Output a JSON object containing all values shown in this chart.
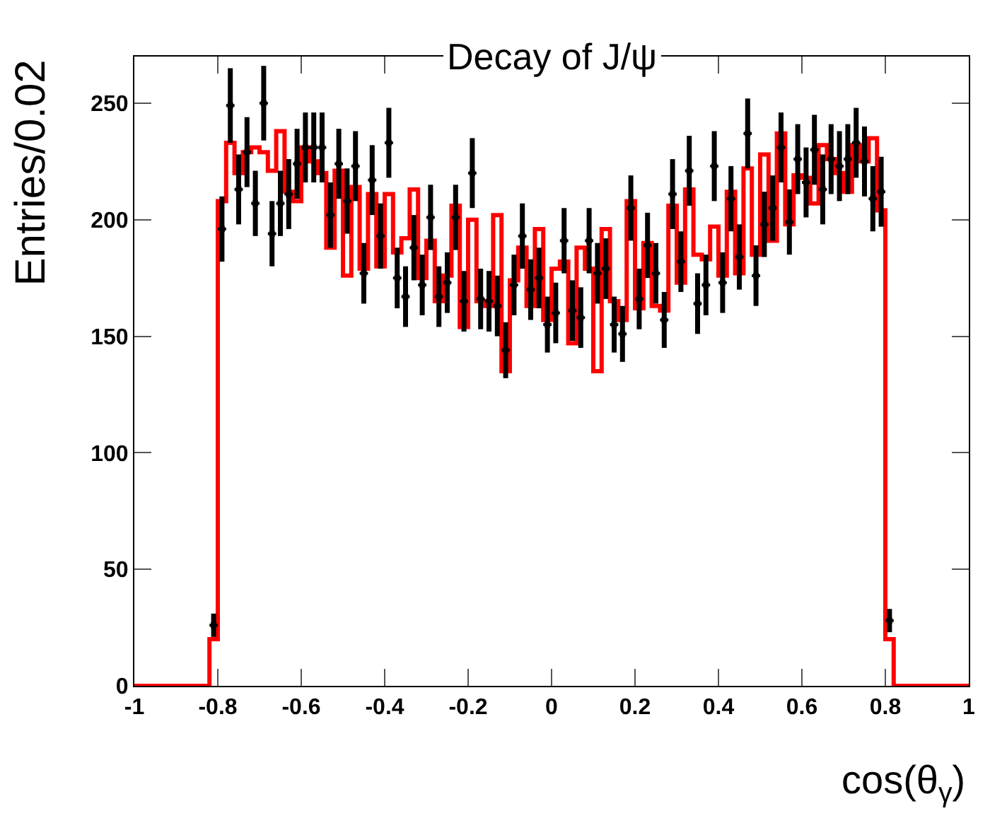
{
  "chart_data": {
    "type": "histogram",
    "title": "Decay of J/ψ",
    "xlabel": "cos(θ$_{γ}$)",
    "ylabel": "Entries/0.02",
    "xlim": [
      -1,
      1
    ],
    "xticks": [
      -1,
      -0.8,
      -0.6,
      -0.4,
      -0.2,
      0,
      0.2,
      0.4,
      0.6,
      0.8,
      1
    ],
    "ylim": [
      0,
      270
    ],
    "yticks": [
      0,
      50,
      100,
      150,
      200,
      250
    ],
    "bins": [
      -1,
      -0.82,
      -0.8,
      -0.78,
      -0.76,
      -0.74,
      -0.72,
      -0.7,
      -0.68,
      -0.66,
      -0.64,
      -0.62,
      -0.6,
      -0.58,
      -0.56,
      -0.54,
      -0.52,
      -0.5,
      -0.48,
      -0.46,
      -0.44,
      -0.42,
      -0.4,
      -0.38,
      -0.36,
      -0.34,
      -0.32,
      -0.3,
      -0.28,
      -0.26,
      -0.24,
      -0.22,
      -0.2,
      -0.18,
      -0.16,
      -0.14,
      -0.12,
      -0.1,
      -0.08,
      -0.06,
      -0.04,
      -0.02,
      0,
      0.02,
      0.04,
      0.06,
      0.08,
      0.1,
      0.12,
      0.14,
      0.16,
      0.18,
      0.2,
      0.22,
      0.24,
      0.26,
      0.28,
      0.3,
      0.32,
      0.34,
      0.36,
      0.38,
      0.4,
      0.42,
      0.44,
      0.46,
      0.48,
      0.5,
      0.52,
      0.54,
      0.56,
      0.58,
      0.6,
      0.62,
      0.64,
      0.66,
      0.68,
      0.7,
      0.72,
      0.74,
      0.76,
      0.78,
      0.8,
      0.82,
      1
    ],
    "series": [
      {
        "color": "#ff0000",
        "values": [
          0,
          20,
          208,
          233,
          220,
          229,
          231,
          229,
          221,
          238,
          212,
          208,
          231,
          225,
          220,
          188,
          221,
          176,
          214,
          179,
          211,
          180,
          211,
          186,
          192,
          213,
          175,
          191,
          165,
          176,
          206,
          154,
          200,
          165,
          163,
          202,
          135,
          174,
          188,
          163,
          196,
          157,
          179,
          182,
          147,
          188,
          179,
          135,
          196,
          165,
          157,
          208,
          162,
          190,
          163,
          161,
          206,
          173,
          213,
          185,
          183,
          197,
          176,
          212,
          177,
          222,
          185,
          228,
          191,
          237,
          198,
          219,
          218,
          207,
          232,
          226,
          220,
          212,
          232,
          225,
          235,
          204,
          20,
          0
        ]
      },
      {
        "type": "scatter",
        "color": "#000000",
        "marker": "square",
        "x": [
          -0.81,
          -0.79,
          -0.77,
          -0.75,
          -0.73,
          -0.71,
          -0.69,
          -0.67,
          -0.65,
          -0.63,
          -0.61,
          -0.59,
          -0.57,
          -0.55,
          -0.53,
          -0.51,
          -0.49,
          -0.47,
          -0.45,
          -0.43,
          -0.41,
          -0.39,
          -0.37,
          -0.35,
          -0.33,
          -0.31,
          -0.29,
          -0.27,
          -0.25,
          -0.23,
          -0.21,
          -0.19,
          -0.17,
          -0.15,
          -0.13,
          -0.11,
          -0.09,
          -0.07,
          -0.05,
          -0.03,
          -0.01,
          0.01,
          0.03,
          0.05,
          0.07,
          0.09,
          0.11,
          0.13,
          0.15,
          0.17,
          0.19,
          0.21,
          0.23,
          0.25,
          0.27,
          0.29,
          0.31,
          0.33,
          0.35,
          0.37,
          0.39,
          0.41,
          0.43,
          0.45,
          0.47,
          0.49,
          0.51,
          0.53,
          0.55,
          0.57,
          0.59,
          0.61,
          0.63,
          0.65,
          0.67,
          0.69,
          0.71,
          0.73,
          0.75,
          0.77,
          0.79,
          0.81
        ],
        "values": [
          26,
          196,
          249,
          213,
          229,
          207,
          250,
          194,
          207,
          211,
          224,
          231,
          231,
          231,
          202,
          224,
          208,
          223,
          177,
          217,
          193,
          233,
          175,
          167,
          188,
          172,
          201,
          167,
          173,
          201,
          165,
          220,
          166,
          165,
          163,
          144,
          172,
          193,
          170,
          175,
          155,
          160,
          191,
          161,
          158,
          191,
          177,
          179,
          155,
          151,
          205,
          166,
          189,
          177,
          157,
          211,
          182,
          221,
          164,
          172,
          223,
          173,
          209,
          184,
          237,
          176,
          198,
          205,
          231,
          199,
          226,
          216,
          230,
          213,
          226,
          223,
          226,
          233,
          225,
          209,
          212,
          28
        ],
        "errors": [
          5,
          14,
          16,
          15,
          15,
          14,
          16,
          14,
          14,
          15,
          15,
          15,
          15,
          15,
          14,
          15,
          14,
          15,
          13,
          15,
          14,
          15,
          13,
          13,
          14,
          13,
          14,
          13,
          13,
          14,
          13,
          15,
          13,
          13,
          13,
          12,
          13,
          14,
          13,
          13,
          12,
          13,
          14,
          13,
          13,
          14,
          13,
          13,
          12,
          12,
          14,
          13,
          14,
          13,
          12,
          15,
          13,
          15,
          13,
          13,
          15,
          13,
          14,
          14,
          15,
          13,
          14,
          14,
          15,
          14,
          15,
          15,
          15,
          15,
          15,
          15,
          15,
          15,
          15,
          14,
          15,
          5
        ],
        "xerrors": [
          0.01,
          0.01,
          0.01,
          0.01,
          0.01,
          0.01,
          0.01,
          0.01,
          0.01,
          0.01,
          0.01,
          0.01,
          0.01,
          0.01,
          0.01,
          0.01,
          0.01,
          0.01,
          0.01,
          0.01,
          0.01,
          0.01,
          0.01,
          0.01,
          0.01,
          0.01,
          0.01,
          0.01,
          0.01,
          0.01,
          0.01,
          0.01,
          0.01,
          0.01,
          0.01,
          0.01,
          0.01,
          0.01,
          0.01,
          0.01,
          0.01,
          0.01,
          0.01,
          0.01,
          0.01,
          0.01,
          0.01,
          0.01,
          0.01,
          0.01,
          0.01,
          0.01,
          0.01,
          0.01,
          0.01,
          0.01,
          0.01,
          0.01,
          0.01,
          0.01,
          0.01,
          0.01,
          0.01,
          0.01,
          0.01,
          0.01,
          0.01,
          0.01,
          0.01,
          0.01,
          0.01,
          0.01,
          0.01,
          0.01,
          0.01,
          0.01,
          0.01,
          0.01,
          0.01,
          0.01,
          0.01,
          0.01
        ]
      }
    ]
  }
}
